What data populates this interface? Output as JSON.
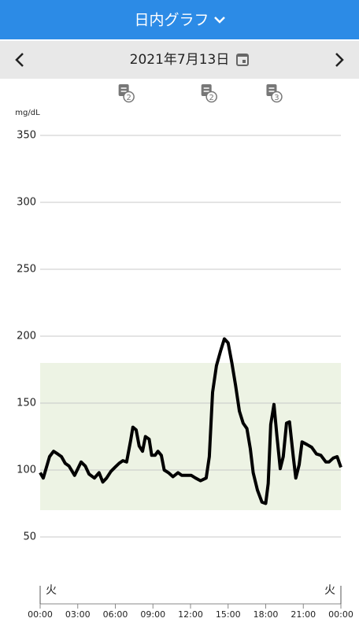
{
  "header": {
    "title": "日内グラフ",
    "date": "2021年7月13日"
  },
  "chart_data": {
    "type": "line",
    "y_label": "mg/dL",
    "x": [
      0,
      0.25,
      0.75,
      1.07,
      1.4,
      1.7,
      2.0,
      2.3,
      2.75,
      3.27,
      3.6,
      3.9,
      4.33,
      4.7,
      5.0,
      5.3,
      5.65,
      5.97,
      6.3,
      6.6,
      6.9,
      7.22,
      7.4,
      7.66,
      7.9,
      8.17,
      8.4,
      8.7,
      8.9,
      9.17,
      9.4,
      9.67,
      9.9,
      10.24,
      10.6,
      11.0,
      11.3,
      11.7,
      12.06,
      12.4,
      12.8,
      13.25,
      13.5,
      13.76,
      14.07,
      14.4,
      14.7,
      15.0,
      15.3,
      15.6,
      15.9,
      16.2,
      16.5,
      16.77,
      17.0,
      17.34,
      17.7,
      18.0,
      18.2,
      18.4,
      18.66,
      18.9,
      19.16,
      19.4,
      19.66,
      19.9,
      20.2,
      20.4,
      20.67,
      20.9,
      21.3,
      21.67,
      22.05,
      22.4,
      22.8,
      23.05,
      23.4,
      23.7,
      24.0
    ],
    "series": [
      {
        "color": "#000000",
        "values": [
          98,
          94,
          110,
          114,
          112,
          110,
          105,
          103,
          96,
          106,
          103,
          97,
          94,
          98,
          91,
          94,
          99,
          102,
          105,
          107,
          106,
          122,
          132,
          130,
          118,
          114,
          125,
          123,
          111,
          111,
          114,
          111,
          100,
          98,
          95,
          98,
          96,
          96,
          96,
          94,
          92,
          94,
          110,
          158,
          178,
          189,
          198,
          195,
          180,
          163,
          144,
          135,
          131,
          116,
          98,
          85,
          76,
          75,
          90,
          134,
          149,
          125,
          101,
          110,
          135,
          136,
          110,
          94,
          104,
          121,
          119,
          117,
          112,
          111,
          106,
          106,
          109,
          110,
          102
        ]
      }
    ],
    "target_range": [
      70,
      180
    ],
    "target_color": "#edf3e4",
    "xlim": [
      0,
      24
    ],
    "xticks": [
      {
        "value": 0,
        "label": "00:00"
      },
      {
        "value": 3,
        "label": "03:00"
      },
      {
        "value": 6,
        "label": "06:00"
      },
      {
        "value": 9,
        "label": "09:00"
      },
      {
        "value": 12,
        "label": "12:00"
      },
      {
        "value": 15,
        "label": "15:00"
      },
      {
        "value": 18,
        "label": "18:00"
      },
      {
        "value": 21,
        "label": "21:00"
      },
      {
        "value": 24,
        "label": "00:00"
      }
    ],
    "day_labels": [
      {
        "value": 0,
        "label": "火"
      },
      {
        "value": 24,
        "label": "火"
      }
    ],
    "ylim": [
      0,
      350
    ],
    "yticks": [
      50,
      100,
      150,
      200,
      250,
      300,
      350
    ],
    "grid": true,
    "notes": {
      "x": [
        6.7,
        13.3,
        18.5
      ],
      "counts": [
        2,
        2,
        3
      ]
    }
  }
}
